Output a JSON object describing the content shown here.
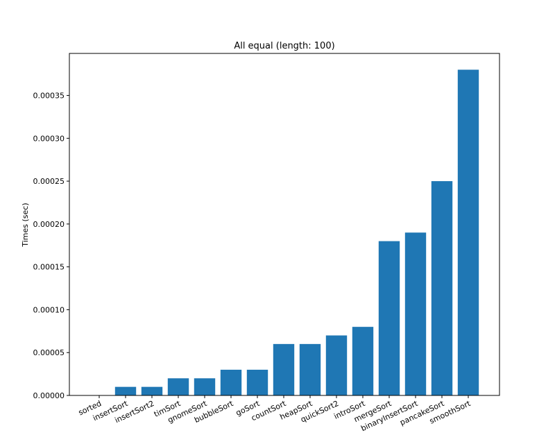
{
  "chart_data": {
    "type": "bar",
    "title": "All equal (length: 100)",
    "xlabel": "",
    "ylabel": "Times (sec)",
    "categories": [
      "sorted",
      "insertSort",
      "insertSort2",
      "timSort",
      "gnomeSort",
      "bubbleSort",
      "goSort",
      "countSort",
      "heapSort",
      "quickSort2",
      "introSort",
      "mergeSort",
      "binaryInsertSort",
      "pancakeSort",
      "smoothSort"
    ],
    "values": [
      0.0,
      1e-05,
      1e-05,
      2e-05,
      2e-05,
      3e-05,
      3e-05,
      6e-05,
      6e-05,
      7e-05,
      8e-05,
      0.00018,
      0.00019,
      0.00025,
      0.00038
    ],
    "ylim": [
      0,
      0.000399
    ],
    "yticks": [
      "0.00000",
      "0.00005",
      "0.00010",
      "0.00015",
      "0.00020",
      "0.00025",
      "0.00030",
      "0.00035"
    ],
    "bar_color": "#1f77b4",
    "grid": false,
    "legend": "none"
  }
}
